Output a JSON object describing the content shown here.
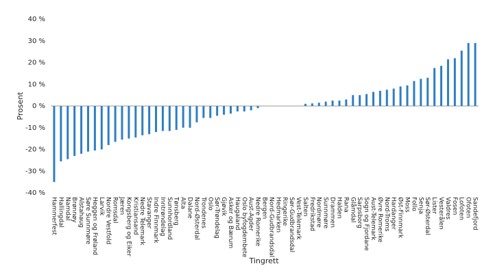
{
  "chart_data": {
    "type": "bar",
    "x_label": "Tingrett",
    "y_label": "Prosent",
    "color": "#2e7ec2",
    "grid": false,
    "categories": [
      "Hammerfest",
      "Hallingdal",
      "Namdal",
      "Brønnøy",
      "Alstahaug",
      "Søre Sunnmøre",
      "Heggen og Frøland",
      "Larvik",
      "Nordre Vestfold",
      "Romsdal",
      "Jæren",
      "Kongsberg og Eiker",
      "Kristiansand",
      "Nedre Telemark",
      "Stavanger",
      "Indre Finnmark",
      "Inntrøndelag",
      "Sunnhordland",
      "Tønsberg",
      "Alta",
      "Dalane",
      "Nord-Østerdal",
      "Trondenes",
      "Oslo",
      "Sør-Trøndelag",
      "Gjøvik",
      "Asker og Bærum",
      "Haugaland",
      "Oslo byfogdembete",
      "Aust-Agder",
      "Nedre Romerike",
      "Bergen",
      "Nord-Gudbrandsdal",
      "Hedmarken",
      "Ringerike",
      "Sør-Gudbrandsdal",
      "Vest-Telemark",
      "Salten",
      "Fredrikstad",
      "Nordmøre",
      "Sunnmøre",
      "Drammen",
      "Halden",
      "Rana",
      "Glåmdal",
      "Sarpsborg",
      "Sogn og Fjordane",
      "Aust-Telemark",
      "Øvre Romerike",
      "Nord-Troms",
      "Hardanger",
      "Øst-Finnmark",
      "Moss",
      "Follo",
      "Senja",
      "Sør-Østerdal",
      "Lister",
      "Vesterålen",
      "Valdres",
      "Fosen",
      "Lofoten",
      "Ofoten",
      "Sandefjord"
    ],
    "values": [
      -35,
      -25.5,
      -24.5,
      -23,
      -22,
      -21,
      -20.5,
      -20,
      -18,
      -16.5,
      -15.5,
      -15,
      -14.5,
      -13.5,
      -13,
      -12,
      -11.5,
      -11.5,
      -11,
      -10,
      -10,
      -7.5,
      -5.5,
      -5.5,
      -4.5,
      -4,
      -3.5,
      -2.5,
      -2.5,
      -2,
      -1,
      0,
      0,
      0,
      0,
      0,
      0,
      1,
      1.2,
      1.5,
      2,
      2.5,
      2.5,
      3,
      5,
      5,
      5.5,
      6.5,
      7,
      7.5,
      8,
      9,
      9.5,
      11.5,
      12.5,
      13,
      17.5,
      18.5,
      21.5,
      22,
      25.5,
      29,
      29
    ],
    "ylim": [
      -40,
      40
    ],
    "yticks": [
      {
        "value": -40,
        "label": "-40 %"
      },
      {
        "value": -30,
        "label": "-30 %"
      },
      {
        "value": -20,
        "label": "-20 %"
      },
      {
        "value": -10,
        "label": "-10 %"
      },
      {
        "value": 0,
        "label": "0 %"
      },
      {
        "value": 10,
        "label": "10 %"
      },
      {
        "value": 20,
        "label": "20 %"
      },
      {
        "value": 30,
        "label": "30 %"
      },
      {
        "value": 40,
        "label": "40 %"
      }
    ]
  }
}
